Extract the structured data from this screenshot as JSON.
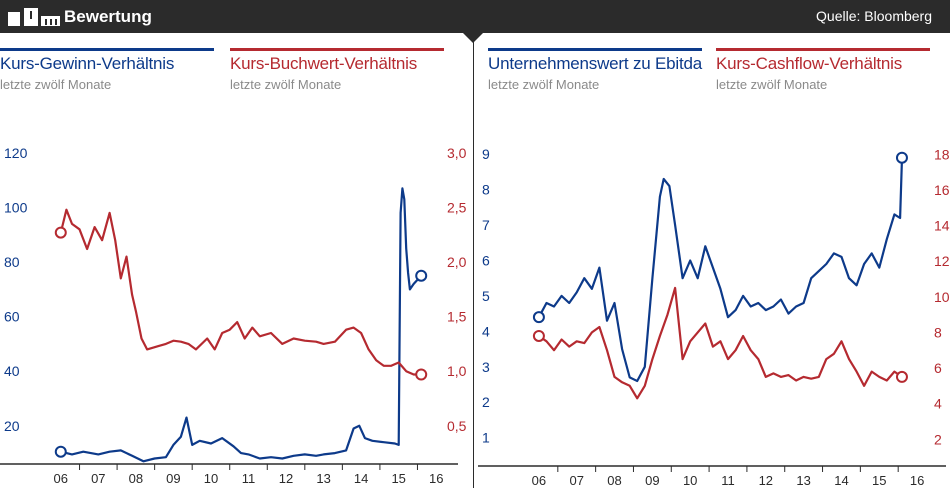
{
  "header": {
    "title": "Bewertung",
    "source": "Quelle: Bloomberg"
  },
  "colors": {
    "blue": "#0d3a8a",
    "red": "#b52a30",
    "dark": "#2b2b2b"
  },
  "chart_data": [
    {
      "type": "line",
      "x_ticks": [
        "06",
        "07",
        "08",
        "09",
        "10",
        "11",
        "12",
        "13",
        "14",
        "15",
        "16"
      ],
      "xlim": [
        2005.5,
        2016.5
      ],
      "left_axis": {
        "ticks": [
          20,
          40,
          60,
          80,
          100,
          120
        ],
        "ylim": [
          6,
          124
        ]
      },
      "right_axis": {
        "ticks": [
          "0,5",
          "1,0",
          "1,5",
          "2,0",
          "2,5",
          "3,0"
        ],
        "tick_values": [
          0.5,
          1.0,
          1.5,
          2.0,
          2.5,
          3.0
        ],
        "ylim": [
          0.15,
          3.1
        ]
      },
      "series": [
        {
          "name": "Kurs-Gewinn-Verhältnis",
          "subtitle": "letzte zwölf Monate",
          "axis": "left",
          "color": "#0d3a8a",
          "x": [
            2006.0,
            2006.3,
            2006.6,
            2007.0,
            2007.3,
            2007.6,
            2007.9,
            2008.2,
            2008.5,
            2008.8,
            2009.0,
            2009.2,
            2009.35,
            2009.5,
            2009.7,
            2010.0,
            2010.3,
            2010.6,
            2010.8,
            2011.0,
            2011.3,
            2011.6,
            2011.9,
            2012.2,
            2012.5,
            2012.8,
            2013.0,
            2013.3,
            2013.6,
            2013.8,
            2013.95,
            2014.1,
            2014.3,
            2014.6,
            2014.9,
            2015.0,
            2015.05,
            2015.1,
            2015.15,
            2015.2,
            2015.25,
            2015.3,
            2015.4,
            2015.6
          ],
          "y": [
            10.5,
            9.5,
            10.5,
            9.5,
            10.5,
            11.0,
            9.0,
            7.0,
            8.0,
            8.5,
            13.0,
            16.0,
            23.0,
            13.0,
            14.5,
            13.5,
            15.5,
            12.5,
            10.0,
            9.5,
            8.0,
            8.5,
            8.0,
            9.0,
            9.5,
            9.0,
            9.5,
            10.0,
            11.0,
            19.0,
            20.0,
            15.5,
            14.5,
            14.0,
            13.5,
            13.0,
            98.0,
            107.0,
            103.0,
            85.0,
            76.0,
            70.0,
            72.0,
            75.0
          ]
        },
        {
          "name": "Kurs-Buchwert-Verhältnis",
          "subtitle": "letzte zwölf Monate",
          "axis": "right",
          "color": "#b52a30",
          "x": [
            2006.0,
            2006.15,
            2006.3,
            2006.5,
            2006.7,
            2006.9,
            2007.1,
            2007.3,
            2007.45,
            2007.6,
            2007.75,
            2007.9,
            2008.0,
            2008.15,
            2008.3,
            2008.6,
            2008.8,
            2009.0,
            2009.2,
            2009.4,
            2009.6,
            2009.9,
            2010.1,
            2010.3,
            2010.5,
            2010.7,
            2010.9,
            2011.1,
            2011.3,
            2011.6,
            2011.9,
            2012.2,
            2012.5,
            2012.8,
            2013.0,
            2013.3,
            2013.6,
            2013.8,
            2014.0,
            2014.2,
            2014.4,
            2014.6,
            2014.8,
            2015.0,
            2015.2,
            2015.4,
            2015.6
          ],
          "y": [
            2.27,
            2.48,
            2.35,
            2.3,
            2.12,
            2.32,
            2.2,
            2.45,
            2.2,
            1.85,
            2.05,
            1.7,
            1.55,
            1.3,
            1.2,
            1.23,
            1.25,
            1.28,
            1.27,
            1.25,
            1.2,
            1.3,
            1.2,
            1.35,
            1.38,
            1.45,
            1.3,
            1.4,
            1.32,
            1.35,
            1.25,
            1.3,
            1.28,
            1.27,
            1.25,
            1.27,
            1.38,
            1.4,
            1.35,
            1.2,
            1.1,
            1.05,
            1.05,
            1.08,
            1.0,
            0.97,
            0.97
          ]
        }
      ]
    },
    {
      "type": "line",
      "x_ticks": [
        "06",
        "07",
        "08",
        "09",
        "10",
        "11",
        "12",
        "13",
        "14",
        "15",
        "16"
      ],
      "xlim": [
        2005.5,
        2016.5
      ],
      "left_axis": {
        "ticks": [
          1,
          2,
          3,
          4,
          5,
          6,
          7,
          8,
          9
        ],
        "ylim": [
          0.2,
          9.4
        ]
      },
      "right_axis": {
        "ticks": [
          2,
          4,
          6,
          8,
          10,
          12,
          14,
          16,
          18
        ],
        "ylim": [
          0.5,
          18.8
        ]
      },
      "series": [
        {
          "name": "Unternehmenswert zu Ebitda",
          "subtitle": "letzte zwölf Monate",
          "axis": "left",
          "color": "#0d3a8a",
          "x": [
            2006.0,
            2006.2,
            2006.4,
            2006.6,
            2006.8,
            2007.0,
            2007.2,
            2007.4,
            2007.6,
            2007.8,
            2008.0,
            2008.2,
            2008.4,
            2008.6,
            2008.8,
            2009.0,
            2009.2,
            2009.3,
            2009.45,
            2009.6,
            2009.8,
            2010.0,
            2010.2,
            2010.4,
            2010.6,
            2010.8,
            2011.0,
            2011.2,
            2011.4,
            2011.6,
            2011.8,
            2012.0,
            2012.2,
            2012.4,
            2012.6,
            2012.8,
            2013.0,
            2013.2,
            2013.4,
            2013.6,
            2013.8,
            2014.0,
            2014.2,
            2014.4,
            2014.6,
            2014.8,
            2015.0,
            2015.2,
            2015.4,
            2015.55,
            2015.6
          ],
          "y": [
            4.4,
            4.8,
            4.7,
            5.0,
            4.8,
            5.1,
            5.5,
            5.2,
            5.8,
            4.3,
            4.8,
            3.5,
            2.7,
            2.6,
            3.0,
            5.5,
            7.8,
            8.3,
            8.1,
            7.0,
            5.5,
            6.0,
            5.5,
            6.4,
            5.8,
            5.2,
            4.4,
            4.6,
            5.0,
            4.7,
            4.8,
            4.6,
            4.7,
            4.9,
            4.5,
            4.7,
            4.8,
            5.5,
            5.7,
            5.9,
            6.2,
            6.1,
            5.5,
            5.3,
            5.9,
            6.2,
            5.8,
            6.6,
            7.3,
            7.2,
            8.9
          ]
        },
        {
          "name": "Kurs-Cashflow-Verhältnis",
          "subtitle": "letzte zwölf Monate",
          "axis": "right",
          "color": "#b52a30",
          "x": [
            2006.0,
            2006.2,
            2006.4,
            2006.6,
            2006.8,
            2007.0,
            2007.2,
            2007.4,
            2007.6,
            2007.8,
            2008.0,
            2008.2,
            2008.4,
            2008.6,
            2008.8,
            2009.0,
            2009.2,
            2009.4,
            2009.6,
            2009.8,
            2010.0,
            2010.2,
            2010.4,
            2010.6,
            2010.8,
            2011.0,
            2011.2,
            2011.4,
            2011.6,
            2011.8,
            2012.0,
            2012.2,
            2012.4,
            2012.6,
            2012.8,
            2013.0,
            2013.2,
            2013.4,
            2013.6,
            2013.8,
            2014.0,
            2014.2,
            2014.4,
            2014.6,
            2014.8,
            2015.0,
            2015.2,
            2015.4,
            2015.6
          ],
          "y": [
            7.8,
            7.5,
            7.0,
            7.6,
            7.2,
            7.5,
            7.4,
            8.0,
            8.3,
            7.0,
            5.5,
            5.2,
            5.0,
            4.3,
            5.0,
            6.5,
            7.8,
            9.0,
            10.5,
            6.5,
            7.5,
            8.0,
            8.5,
            7.2,
            7.5,
            6.5,
            7.0,
            7.8,
            7.0,
            6.5,
            5.5,
            5.7,
            5.5,
            5.6,
            5.3,
            5.5,
            5.4,
            5.5,
            6.5,
            6.8,
            7.5,
            6.5,
            5.8,
            5.0,
            5.8,
            5.5,
            5.3,
            5.8,
            5.5
          ]
        }
      ]
    }
  ]
}
